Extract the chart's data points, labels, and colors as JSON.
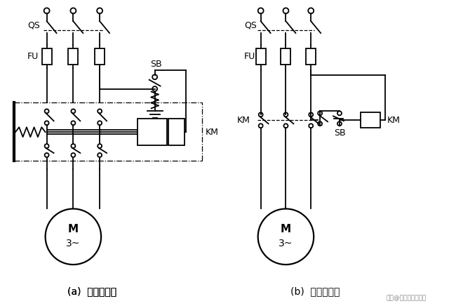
{
  "bg_color": "#ffffff",
  "line_color": "#000000",
  "label_a": "(a)  接线示意图",
  "label_b": "(b)  电气原理图",
  "watermark": "买家@电气自动化应用",
  "figsize": [
    6.4,
    4.36
  ],
  "dpi": 100
}
